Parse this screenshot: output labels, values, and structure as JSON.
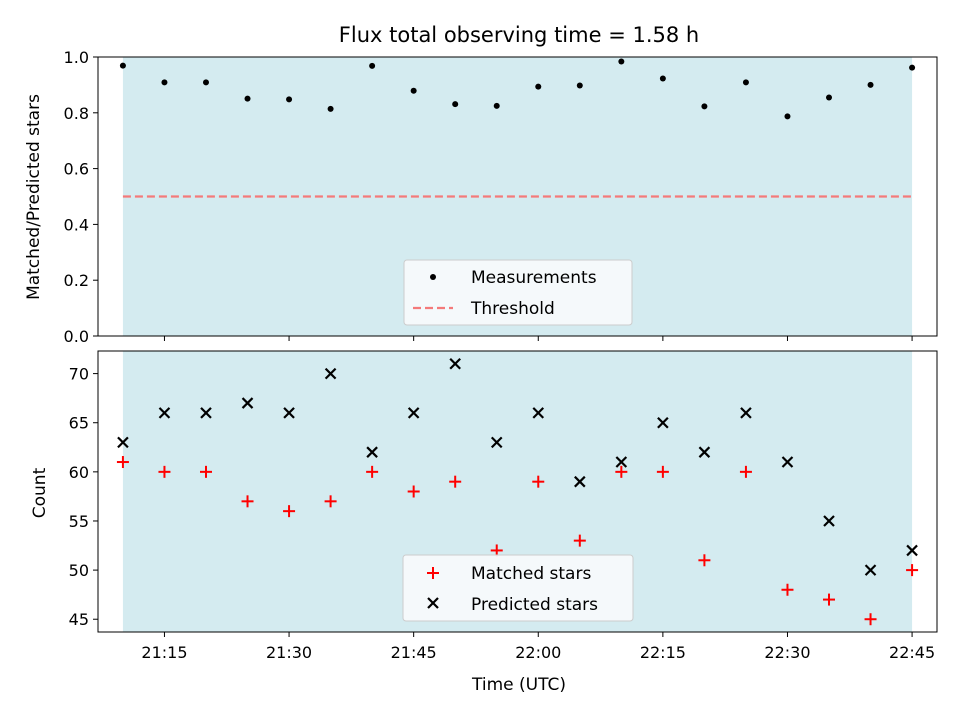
{
  "chart_data": [
    {
      "type": "scatter",
      "title": "Flux total observing time = 1.58 h",
      "xlabel": "",
      "ylabel": "Matched/Predicted stars",
      "xlim": [
        "21:07",
        "22:48"
      ],
      "ylim": [
        0,
        1.0
      ],
      "yticks": [
        "0.0",
        "0.2",
        "0.4",
        "0.6",
        "0.8",
        "1.0"
      ],
      "shaded_span": [
        "21:10",
        "22:45"
      ],
      "shade_color": "#d4ebf0",
      "x": [
        "21:10",
        "21:15",
        "21:20",
        "21:25",
        "21:30",
        "21:35",
        "21:40",
        "21:45",
        "21:50",
        "21:55",
        "22:00",
        "22:05",
        "22:10",
        "22:15",
        "22:20",
        "22:25",
        "22:30",
        "22:35",
        "22:40",
        "22:45"
      ],
      "series": [
        {
          "name": "Measurements",
          "marker": "dot",
          "color": "#000000",
          "values": [
            0.969,
            0.909,
            0.909,
            0.851,
            0.848,
            0.814,
            0.968,
            0.879,
            0.831,
            0.825,
            0.894,
            0.898,
            0.984,
            0.923,
            0.823,
            0.909,
            0.787,
            0.855,
            0.9,
            0.962
          ]
        },
        {
          "name": "Threshold",
          "marker": "dashed-line",
          "color": "#f47a7a",
          "values": [
            0.5
          ]
        }
      ],
      "legend": "lower-center"
    },
    {
      "type": "scatter",
      "title": "",
      "xlabel": "Time (UTC)",
      "ylabel": "Count",
      "xlim": [
        "21:07",
        "22:48"
      ],
      "ylim": [
        43.7,
        72.3
      ],
      "yticks": [
        "45",
        "50",
        "55",
        "60",
        "65",
        "70"
      ],
      "xticks": [
        "21:15",
        "21:30",
        "21:45",
        "22:00",
        "22:15",
        "22:30",
        "22:45"
      ],
      "shaded_span": [
        "21:10",
        "22:45"
      ],
      "shade_color": "#d4ebf0",
      "x": [
        "21:10",
        "21:15",
        "21:20",
        "21:25",
        "21:30",
        "21:35",
        "21:40",
        "21:45",
        "21:50",
        "21:55",
        "22:00",
        "22:05",
        "22:10",
        "22:15",
        "22:20",
        "22:25",
        "22:30",
        "22:35",
        "22:40",
        "22:45"
      ],
      "series": [
        {
          "name": "Matched stars",
          "marker": "plus",
          "color": "#ff0000",
          "values": [
            61,
            60,
            60,
            57,
            56,
            57,
            60,
            58,
            59,
            52,
            59,
            53,
            60,
            60,
            51,
            60,
            48,
            47,
            45,
            50
          ]
        },
        {
          "name": "Predicted stars",
          "marker": "x",
          "color": "#000000",
          "values": [
            63,
            66,
            66,
            67,
            66,
            70,
            62,
            66,
            71,
            63,
            66,
            59,
            61,
            65,
            62,
            66,
            61,
            55,
            50,
            52
          ]
        }
      ],
      "legend": "lower-center"
    }
  ]
}
